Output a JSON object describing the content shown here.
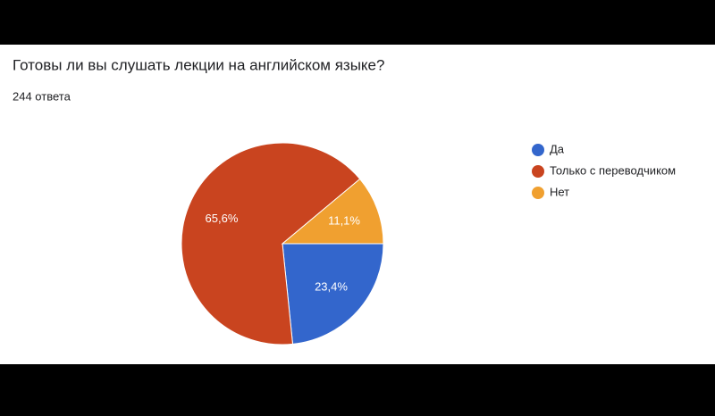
{
  "chart_data": {
    "type": "pie",
    "title": "Готовы ли вы слушать лекции на английском языке?",
    "subtitle": "244 ответа",
    "categories": [
      "Да",
      "Только с переводчиком",
      "Нет"
    ],
    "values": [
      23.4,
      65.6,
      11.1
    ],
    "value_labels": [
      "23,4%",
      "65,6%",
      "11,1%"
    ],
    "colors": [
      "#3366cc",
      "#c9441f",
      "#f0a030"
    ],
    "legend": "right"
  }
}
